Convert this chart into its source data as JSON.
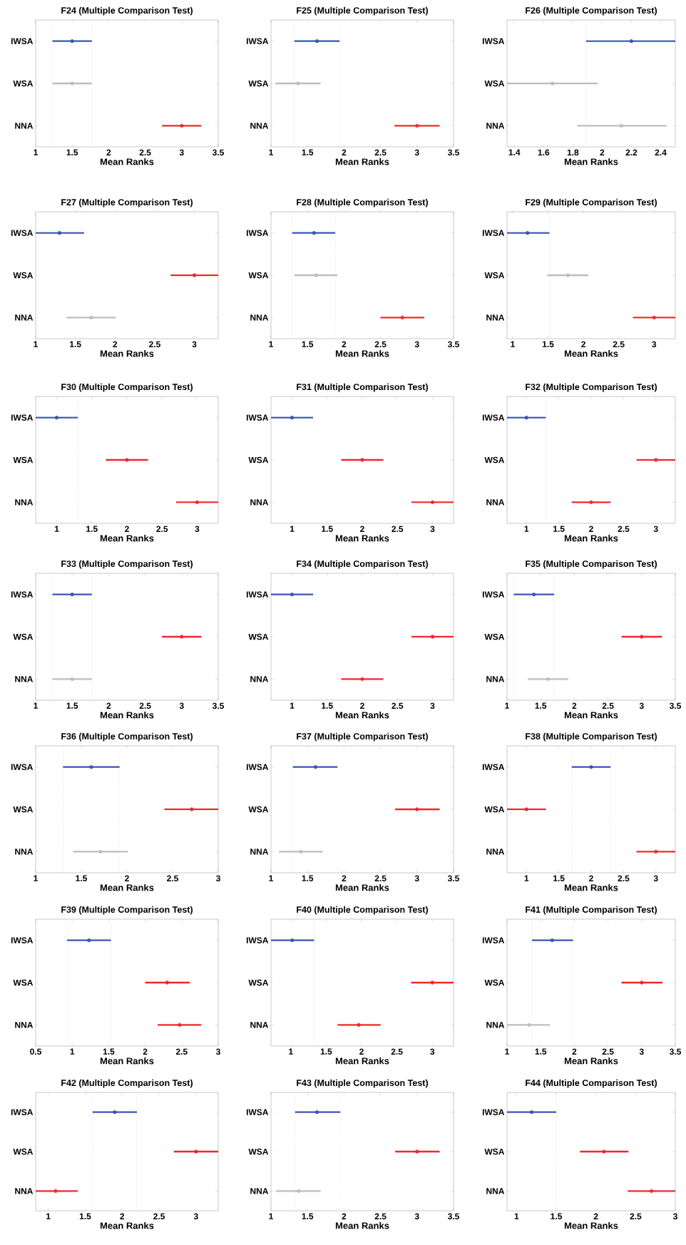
{
  "chart_data": [
    {
      "type": "scatter",
      "orientation": "horizontal",
      "marker": "circle",
      "title": "F24 (Multiple Comparison Test)",
      "xlabel": "Mean Ranks",
      "categories": [
        "IWSA",
        "WSA",
        "NNA"
      ],
      "values": [
        1.5,
        1.5,
        3.0
      ],
      "errors": [
        [
          1.23,
          1.77
        ],
        [
          1.23,
          1.77
        ],
        [
          2.73,
          3.27
        ]
      ],
      "colors": [
        "#3a55b4",
        "#bdbdbd",
        "#f0282d"
      ],
      "xlim": [
        1,
        3.5
      ],
      "xticks": [
        1,
        1.5,
        2,
        2.5,
        3,
        3.5
      ],
      "ref_lines": [
        {
          "axis": "x",
          "value": 1.23,
          "color": "#d4d4d4",
          "line_style": "dotted"
        },
        {
          "axis": "x",
          "value": 1.77,
          "color": "#d4d4d4",
          "line_style": "dotted"
        }
      ]
    },
    {
      "type": "scatter",
      "orientation": "horizontal",
      "marker": "circle",
      "title": "F25 (Multiple Comparison Test)",
      "xlabel": "Mean Ranks",
      "categories": [
        "IWSA",
        "WSA",
        "NNA"
      ],
      "values": [
        1.63,
        1.37,
        3.0
      ],
      "errors": [
        [
          1.32,
          1.94
        ],
        [
          1.06,
          1.68
        ],
        [
          2.69,
          3.31
        ]
      ],
      "colors": [
        "#3a55b4",
        "#bdbdbd",
        "#f0282d"
      ],
      "xlim": [
        1,
        3.5
      ],
      "xticks": [
        1,
        1.5,
        2,
        2.5,
        3,
        3.5
      ],
      "ref_lines": [
        {
          "axis": "x",
          "value": 1.32,
          "color": "#d4d4d4",
          "line_style": "dotted"
        },
        {
          "axis": "x",
          "value": 1.94,
          "color": "#d4d4d4",
          "line_style": "dotted"
        }
      ]
    },
    {
      "type": "scatter",
      "orientation": "horizontal",
      "marker": "circle",
      "title": "F26 (Multiple Comparison Test)",
      "xlabel": "Mean Ranks",
      "categories": [
        "IWSA",
        "WSA",
        "NNA"
      ],
      "values": [
        2.2,
        1.66,
        2.13
      ],
      "errors": [
        [
          1.89,
          2.5
        ],
        [
          1.35,
          1.97
        ],
        [
          1.83,
          2.44
        ]
      ],
      "colors": [
        "#3a55b4",
        "#bdbdbd",
        "#bdbdbd"
      ],
      "xlim": [
        1.35,
        2.5
      ],
      "xticks": [
        1.4,
        1.6,
        1.8,
        2,
        2.2,
        2.4
      ],
      "ref_lines": [
        {
          "axis": "x",
          "value": 1.89,
          "color": "#d4d4d4",
          "line_style": "dotted"
        }
      ]
    },
    {
      "type": "scatter",
      "orientation": "horizontal",
      "marker": "circle",
      "title": "F27 (Multiple Comparison Test)",
      "xlabel": "Mean Ranks",
      "categories": [
        "IWSA",
        "WSA",
        "NNA"
      ],
      "values": [
        1.3,
        3.0,
        1.7
      ],
      "errors": [
        [
          1.0,
          1.61
        ],
        [
          2.7,
          3.3
        ],
        [
          1.39,
          2.01
        ]
      ],
      "colors": [
        "#3a55b4",
        "#f0282d",
        "#bdbdbd"
      ],
      "xlim": [
        1,
        3.3
      ],
      "xticks": [
        1,
        1.5,
        2,
        2.5,
        3
      ],
      "ref_lines": [
        {
          "axis": "x",
          "value": 1.61,
          "color": "#d4d4d4",
          "line_style": "dotted"
        }
      ]
    },
    {
      "type": "scatter",
      "orientation": "horizontal",
      "marker": "circle",
      "title": "F28 (Multiple Comparison Test)",
      "xlabel": "Mean Ranks",
      "categories": [
        "IWSA",
        "WSA",
        "NNA"
      ],
      "values": [
        1.59,
        1.62,
        2.8
      ],
      "errors": [
        [
          1.29,
          1.88
        ],
        [
          1.32,
          1.91
        ],
        [
          2.5,
          3.1
        ]
      ],
      "colors": [
        "#3a55b4",
        "#bdbdbd",
        "#f0282d"
      ],
      "xlim": [
        1,
        3.5
      ],
      "xticks": [
        1,
        1.5,
        2,
        2.5,
        3,
        3.5
      ],
      "ref_lines": [
        {
          "axis": "x",
          "value": 1.29,
          "color": "#d4d4d4",
          "line_style": "dotted"
        },
        {
          "axis": "x",
          "value": 1.88,
          "color": "#d4d4d4",
          "line_style": "dotted"
        }
      ]
    },
    {
      "type": "scatter",
      "orientation": "horizontal",
      "marker": "circle",
      "title": "F29 (Multiple Comparison Test)",
      "xlabel": "Mean Ranks",
      "categories": [
        "IWSA",
        "WSA",
        "NNA"
      ],
      "values": [
        1.21,
        1.78,
        3.0
      ],
      "errors": [
        [
          0.92,
          1.52
        ],
        [
          1.49,
          2.07
        ],
        [
          2.7,
          3.3
        ]
      ],
      "colors": [
        "#3a55b4",
        "#bdbdbd",
        "#f0282d"
      ],
      "xlim": [
        0.92,
        3.3
      ],
      "xticks": [
        1,
        1.5,
        2,
        2.5,
        3
      ],
      "ref_lines": [
        {
          "axis": "x",
          "value": 1.52,
          "color": "#d4d4d4",
          "line_style": "dotted"
        }
      ]
    },
    {
      "type": "scatter",
      "orientation": "horizontal",
      "marker": "circle",
      "title": "F30 (Multiple Comparison Test)",
      "xlabel": "Mean Ranks",
      "categories": [
        "IWSA",
        "WSA",
        "NNA"
      ],
      "values": [
        1.0,
        2.0,
        3.0
      ],
      "errors": [
        [
          0.7,
          1.3
        ],
        [
          1.7,
          2.3
        ],
        [
          2.7,
          3.3
        ]
      ],
      "colors": [
        "#3a55b4",
        "#f0282d",
        "#f0282d"
      ],
      "xlim": [
        0.7,
        3.3
      ],
      "xticks": [
        1,
        1.5,
        2,
        2.5,
        3
      ],
      "ref_lines": [
        {
          "axis": "x",
          "value": 1.3,
          "color": "#d4d4d4",
          "line_style": "dotted"
        }
      ]
    },
    {
      "type": "scatter",
      "orientation": "horizontal",
      "marker": "circle",
      "title": "F31 (Multiple Comparison Test)",
      "xlabel": "Mean Ranks",
      "categories": [
        "IWSA",
        "WSA",
        "NNA"
      ],
      "values": [
        1.0,
        2.0,
        3.0
      ],
      "errors": [
        [
          0.7,
          1.3
        ],
        [
          1.7,
          2.3
        ],
        [
          2.7,
          3.3
        ]
      ],
      "colors": [
        "#3a55b4",
        "#f0282d",
        "#f0282d"
      ],
      "xlim": [
        0.7,
        3.3
      ],
      "xticks": [
        1,
        1.5,
        2,
        2.5,
        3
      ],
      "ref_lines": [
        {
          "axis": "x",
          "value": 1.3,
          "color": "#d4d4d4",
          "line_style": "dotted"
        }
      ]
    },
    {
      "type": "scatter",
      "orientation": "horizontal",
      "marker": "circle",
      "title": "F32 (Multiple Comparison Test)",
      "xlabel": "Mean Ranks",
      "categories": [
        "IWSA",
        "WSA",
        "NNA"
      ],
      "values": [
        1.0,
        3.0,
        2.0
      ],
      "errors": [
        [
          0.7,
          1.3
        ],
        [
          2.7,
          3.3
        ],
        [
          1.7,
          2.3
        ]
      ],
      "colors": [
        "#3a55b4",
        "#f0282d",
        "#f0282d"
      ],
      "xlim": [
        0.7,
        3.3
      ],
      "xticks": [
        1,
        1.5,
        2,
        2.5,
        3
      ],
      "ref_lines": [
        {
          "axis": "x",
          "value": 1.3,
          "color": "#d4d4d4",
          "line_style": "dotted"
        }
      ]
    },
    {
      "type": "scatter",
      "orientation": "horizontal",
      "marker": "circle",
      "title": "F33 (Multiple Comparison Test)",
      "xlabel": "Mean Ranks",
      "categories": [
        "IWSA",
        "WSA",
        "NNA"
      ],
      "values": [
        1.5,
        3.0,
        1.5
      ],
      "errors": [
        [
          1.23,
          1.77
        ],
        [
          2.73,
          3.27
        ],
        [
          1.23,
          1.77
        ]
      ],
      "colors": [
        "#3a55b4",
        "#f0282d",
        "#bdbdbd"
      ],
      "xlim": [
        1,
        3.5
      ],
      "xticks": [
        1,
        1.5,
        2,
        2.5,
        3,
        3.5
      ],
      "ref_lines": [
        {
          "axis": "x",
          "value": 1.23,
          "color": "#d4d4d4",
          "line_style": "dotted"
        },
        {
          "axis": "x",
          "value": 1.77,
          "color": "#d4d4d4",
          "line_style": "dotted"
        }
      ]
    },
    {
      "type": "scatter",
      "orientation": "horizontal",
      "marker": "circle",
      "title": "F34 (Multiple Comparison Test)",
      "xlabel": "Mean Ranks",
      "categories": [
        "IWSA",
        "WSA",
        "NNA"
      ],
      "values": [
        1.0,
        3.0,
        2.0
      ],
      "errors": [
        [
          0.7,
          1.3
        ],
        [
          2.7,
          3.3
        ],
        [
          1.7,
          2.3
        ]
      ],
      "colors": [
        "#3a55b4",
        "#f0282d",
        "#f0282d"
      ],
      "xlim": [
        0.7,
        3.3
      ],
      "xticks": [
        1,
        1.5,
        2,
        2.5,
        3
      ],
      "ref_lines": [
        {
          "axis": "x",
          "value": 1.3,
          "color": "#d4d4d4",
          "line_style": "dotted"
        }
      ]
    },
    {
      "type": "scatter",
      "orientation": "horizontal",
      "marker": "circle",
      "title": "F35 (Multiple Comparison Test)",
      "xlabel": "Mean Ranks",
      "categories": [
        "IWSA",
        "WSA",
        "NNA"
      ],
      "values": [
        1.4,
        3.0,
        1.61
      ],
      "errors": [
        [
          1.1,
          1.7
        ],
        [
          2.7,
          3.3
        ],
        [
          1.31,
          1.91
        ]
      ],
      "colors": [
        "#3a55b4",
        "#f0282d",
        "#bdbdbd"
      ],
      "xlim": [
        1,
        3.5
      ],
      "xticks": [
        1,
        1.5,
        2,
        2.5,
        3,
        3.5
      ],
      "ref_lines": [
        {
          "axis": "x",
          "value": 1.1,
          "color": "#d4d4d4",
          "line_style": "dotted"
        },
        {
          "axis": "x",
          "value": 1.7,
          "color": "#d4d4d4",
          "line_style": "dotted"
        }
      ]
    },
    {
      "type": "scatter",
      "orientation": "horizontal",
      "marker": "circle",
      "title": "F36 (Multiple Comparison Test)",
      "xlabel": "Mean Ranks",
      "categories": [
        "IWSA",
        "WSA",
        "NNA"
      ],
      "values": [
        1.61,
        2.71,
        1.71
      ],
      "errors": [
        [
          1.3,
          1.92
        ],
        [
          2.41,
          3.0
        ],
        [
          1.41,
          2.01
        ]
      ],
      "colors": [
        "#3a55b4",
        "#f0282d",
        "#bdbdbd"
      ],
      "xlim": [
        1,
        3
      ],
      "xticks": [
        1,
        1.5,
        2,
        2.5,
        3
      ],
      "ref_lines": [
        {
          "axis": "x",
          "value": 1.3,
          "color": "#d4d4d4",
          "line_style": "dotted"
        },
        {
          "axis": "x",
          "value": 1.92,
          "color": "#d4d4d4",
          "line_style": "dotted"
        }
      ]
    },
    {
      "type": "scatter",
      "orientation": "horizontal",
      "marker": "circle",
      "title": "F37 (Multiple Comparison Test)",
      "xlabel": "Mean Ranks",
      "categories": [
        "IWSA",
        "WSA",
        "NNA"
      ],
      "values": [
        1.61,
        3.0,
        1.41
      ],
      "errors": [
        [
          1.3,
          1.91
        ],
        [
          2.7,
          3.31
        ],
        [
          1.11,
          1.71
        ]
      ],
      "colors": [
        "#3a55b4",
        "#f0282d",
        "#bdbdbd"
      ],
      "xlim": [
        1,
        3.5
      ],
      "xticks": [
        1,
        1.5,
        2,
        2.5,
        3,
        3.5
      ],
      "ref_lines": [
        {
          "axis": "x",
          "value": 1.3,
          "color": "#d4d4d4",
          "line_style": "dotted"
        },
        {
          "axis": "x",
          "value": 1.91,
          "color": "#d4d4d4",
          "line_style": "dotted"
        }
      ]
    },
    {
      "type": "scatter",
      "orientation": "horizontal",
      "marker": "circle",
      "title": "F38 (Multiple Comparison Test)",
      "xlabel": "Mean Ranks",
      "categories": [
        "IWSA",
        "WSA",
        "NNA"
      ],
      "values": [
        2.0,
        1.0,
        3.0
      ],
      "errors": [
        [
          1.7,
          2.3
        ],
        [
          0.7,
          1.3
        ],
        [
          2.7,
          3.3
        ]
      ],
      "colors": [
        "#3a55b4",
        "#f0282d",
        "#f0282d"
      ],
      "xlim": [
        0.7,
        3.3
      ],
      "xticks": [
        1,
        1.5,
        2,
        2.5,
        3
      ],
      "ref_lines": [
        {
          "axis": "x",
          "value": 1.7,
          "color": "#d4d4d4",
          "line_style": "dotted"
        },
        {
          "axis": "x",
          "value": 2.3,
          "color": "#d4d4d4",
          "line_style": "dotted"
        }
      ]
    },
    {
      "type": "scatter",
      "orientation": "horizontal",
      "marker": "circle",
      "title": "F39 (Multiple Comparison Test)",
      "xlabel": "Mean Ranks",
      "categories": [
        "IWSA",
        "WSA",
        "NNA"
      ],
      "values": [
        1.23,
        2.3,
        2.47
      ],
      "errors": [
        [
          0.93,
          1.53
        ],
        [
          2.0,
          2.61
        ],
        [
          2.17,
          2.77
        ]
      ],
      "colors": [
        "#3a55b4",
        "#f0282d",
        "#f0282d"
      ],
      "xlim": [
        0.5,
        3
      ],
      "xticks": [
        0.5,
        1,
        1.5,
        2,
        2.5,
        3
      ],
      "ref_lines": [
        {
          "axis": "x",
          "value": 0.93,
          "color": "#d4d4d4",
          "line_style": "dotted"
        },
        {
          "axis": "x",
          "value": 1.53,
          "color": "#d4d4d4",
          "line_style": "dotted"
        }
      ]
    },
    {
      "type": "scatter",
      "orientation": "horizontal",
      "marker": "circle",
      "title": "F40 (Multiple Comparison Test)",
      "xlabel": "Mean Ranks",
      "categories": [
        "IWSA",
        "WSA",
        "NNA"
      ],
      "values": [
        1.02,
        3.0,
        1.96
      ],
      "errors": [
        [
          0.72,
          1.33
        ],
        [
          2.7,
          3.3
        ],
        [
          1.66,
          2.27
        ]
      ],
      "colors": [
        "#3a55b4",
        "#f0282d",
        "#f0282d"
      ],
      "xlim": [
        0.72,
        3.3
      ],
      "xticks": [
        1,
        1.5,
        2,
        2.5,
        3
      ],
      "ref_lines": [
        {
          "axis": "x",
          "value": 1.33,
          "color": "#d4d4d4",
          "line_style": "dotted"
        }
      ]
    },
    {
      "type": "scatter",
      "orientation": "horizontal",
      "marker": "circle",
      "title": "F41 (Multiple Comparison Test)",
      "xlabel": "Mean Ranks",
      "categories": [
        "IWSA",
        "WSA",
        "NNA"
      ],
      "values": [
        1.67,
        3.0,
        1.33
      ],
      "errors": [
        [
          1.37,
          1.98
        ],
        [
          2.7,
          3.31
        ],
        [
          1.0,
          1.64
        ]
      ],
      "colors": [
        "#3a55b4",
        "#f0282d",
        "#bdbdbd"
      ],
      "xlim": [
        1,
        3.5
      ],
      "xticks": [
        1,
        1.5,
        2,
        2.5,
        3,
        3.5
      ],
      "ref_lines": [
        {
          "axis": "x",
          "value": 1.37,
          "color": "#d4d4d4",
          "line_style": "dotted"
        },
        {
          "axis": "x",
          "value": 1.98,
          "color": "#d4d4d4",
          "line_style": "dotted"
        }
      ]
    },
    {
      "type": "scatter",
      "orientation": "horizontal",
      "marker": "circle",
      "title": "F42 (Multiple Comparison Test)",
      "xlabel": "Mean Ranks",
      "categories": [
        "IWSA",
        "WSA",
        "NNA"
      ],
      "values": [
        1.9,
        3.0,
        1.1
      ],
      "errors": [
        [
          1.6,
          2.2
        ],
        [
          2.7,
          3.3
        ],
        [
          0.83,
          1.4
        ]
      ],
      "colors": [
        "#3a55b4",
        "#f0282d",
        "#f0282d"
      ],
      "xlim": [
        0.83,
        3.3
      ],
      "xticks": [
        1,
        1.5,
        2,
        2.5,
        3
      ],
      "ref_lines": [
        {
          "axis": "x",
          "value": 1.6,
          "color": "#d4d4d4",
          "line_style": "dotted"
        },
        {
          "axis": "x",
          "value": 2.2,
          "color": "#d4d4d4",
          "line_style": "dotted"
        }
      ]
    },
    {
      "type": "scatter",
      "orientation": "horizontal",
      "marker": "circle",
      "title": "F43 (Multiple Comparison Test)",
      "xlabel": "Mean Ranks",
      "categories": [
        "IWSA",
        "WSA",
        "NNA"
      ],
      "values": [
        1.63,
        3.0,
        1.38
      ],
      "errors": [
        [
          1.33,
          1.95
        ],
        [
          2.7,
          3.31
        ],
        [
          1.07,
          1.68
        ]
      ],
      "colors": [
        "#3a55b4",
        "#f0282d",
        "#bdbdbd"
      ],
      "xlim": [
        1,
        3.5
      ],
      "xticks": [
        1,
        1.5,
        2,
        2.5,
        3,
        3.5
      ],
      "ref_lines": [
        {
          "axis": "x",
          "value": 1.33,
          "color": "#d4d4d4",
          "line_style": "dotted"
        },
        {
          "axis": "x",
          "value": 1.95,
          "color": "#d4d4d4",
          "line_style": "dotted"
        }
      ]
    },
    {
      "type": "scatter",
      "orientation": "horizontal",
      "marker": "circle",
      "title": "F44 (Multiple Comparison Test)",
      "xlabel": "Mean Ranks",
      "categories": [
        "IWSA",
        "WSA",
        "NNA"
      ],
      "values": [
        1.19,
        2.1,
        2.7
      ],
      "errors": [
        [
          0.88,
          1.5
        ],
        [
          1.8,
          2.41
        ],
        [
          2.4,
          3.0
        ]
      ],
      "colors": [
        "#3a55b4",
        "#f0282d",
        "#f0282d"
      ],
      "xlim": [
        0.88,
        3
      ],
      "xticks": [
        1,
        1.5,
        2,
        2.5,
        3
      ],
      "ref_lines": [
        {
          "axis": "x",
          "value": 1.5,
          "color": "#d4d4d4",
          "line_style": "dotted"
        }
      ]
    }
  ]
}
